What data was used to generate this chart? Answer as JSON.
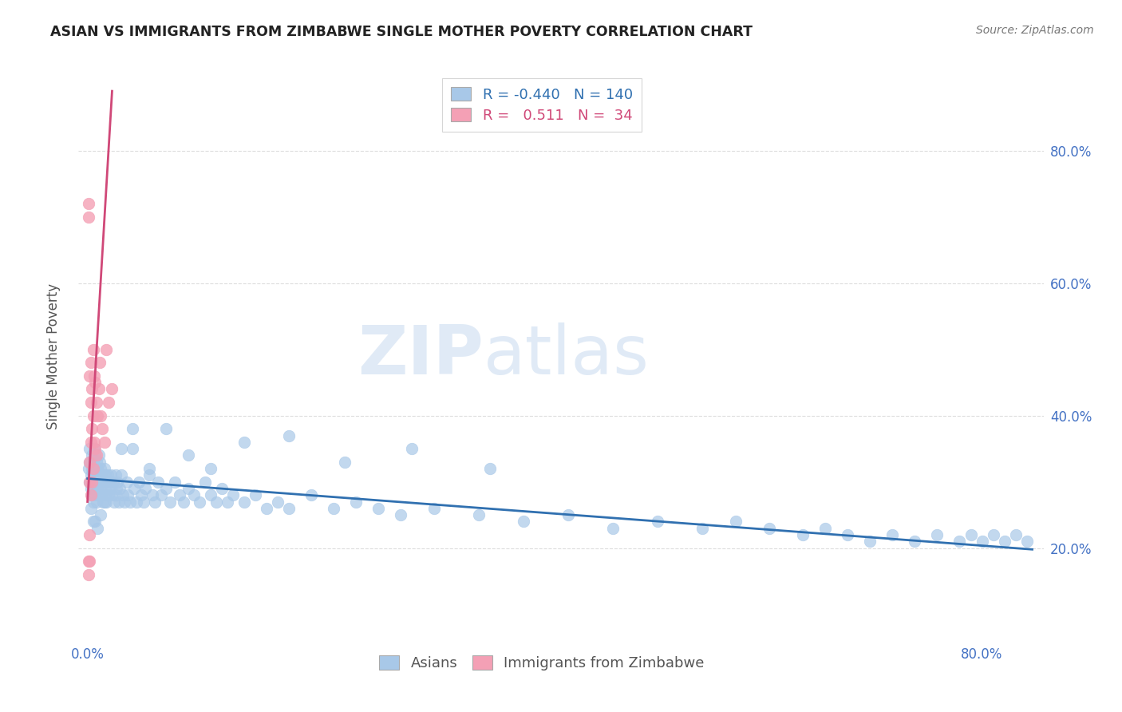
{
  "title": "ASIAN VS IMMIGRANTS FROM ZIMBABWE SINGLE MOTHER POVERTY CORRELATION CHART",
  "source": "Source: ZipAtlas.com",
  "ylabel": "Single Mother Poverty",
  "watermark_zip": "ZIP",
  "watermark_atlas": "atlas",
  "blue_color": "#a8c8e8",
  "pink_color": "#f4a0b5",
  "blue_line_color": "#3070b0",
  "pink_line_color": "#d04878",
  "title_color": "#222222",
  "source_color": "#777777",
  "tick_color": "#4472c4",
  "right_label_color": "#4472c4",
  "ylabel_color": "#555555",
  "legend_border_color": "#cccccc",
  "grid_color": "#dddddd",
  "asian_x": [
    0.001,
    0.002,
    0.002,
    0.003,
    0.003,
    0.003,
    0.004,
    0.004,
    0.004,
    0.005,
    0.005,
    0.005,
    0.005,
    0.006,
    0.006,
    0.006,
    0.007,
    0.007,
    0.007,
    0.008,
    0.008,
    0.008,
    0.009,
    0.009,
    0.01,
    0.01,
    0.01,
    0.011,
    0.011,
    0.012,
    0.012,
    0.013,
    0.013,
    0.014,
    0.014,
    0.015,
    0.015,
    0.016,
    0.016,
    0.017,
    0.017,
    0.018,
    0.019,
    0.019,
    0.02,
    0.021,
    0.022,
    0.023,
    0.024,
    0.025,
    0.026,
    0.027,
    0.028,
    0.029,
    0.03,
    0.032,
    0.033,
    0.035,
    0.036,
    0.038,
    0.04,
    0.042,
    0.044,
    0.046,
    0.048,
    0.05,
    0.052,
    0.055,
    0.058,
    0.06,
    0.063,
    0.066,
    0.07,
    0.074,
    0.078,
    0.082,
    0.086,
    0.09,
    0.095,
    0.1,
    0.105,
    0.11,
    0.115,
    0.12,
    0.125,
    0.13,
    0.14,
    0.15,
    0.16,
    0.17,
    0.18,
    0.2,
    0.22,
    0.24,
    0.26,
    0.28,
    0.31,
    0.35,
    0.39,
    0.43,
    0.47,
    0.51,
    0.55,
    0.58,
    0.61,
    0.64,
    0.66,
    0.68,
    0.7,
    0.72,
    0.74,
    0.76,
    0.78,
    0.79,
    0.8,
    0.81,
    0.82,
    0.83,
    0.84,
    0.002,
    0.003,
    0.005,
    0.007,
    0.009,
    0.012,
    0.015,
    0.02,
    0.025,
    0.03,
    0.04,
    0.055,
    0.07,
    0.09,
    0.11,
    0.14,
    0.18,
    0.23,
    0.29,
    0.36
  ],
  "asian_y": [
    0.32,
    0.35,
    0.3,
    0.33,
    0.31,
    0.29,
    0.34,
    0.32,
    0.28,
    0.33,
    0.31,
    0.29,
    0.27,
    0.35,
    0.32,
    0.3,
    0.34,
    0.31,
    0.28,
    0.33,
    0.3,
    0.27,
    0.32,
    0.29,
    0.34,
    0.31,
    0.28,
    0.33,
    0.3,
    0.32,
    0.29,
    0.31,
    0.28,
    0.3,
    0.27,
    0.32,
    0.29,
    0.31,
    0.28,
    0.3,
    0.27,
    0.31,
    0.28,
    0.3,
    0.29,
    0.31,
    0.28,
    0.3,
    0.27,
    0.31,
    0.29,
    0.3,
    0.27,
    0.29,
    0.31,
    0.28,
    0.27,
    0.3,
    0.28,
    0.27,
    0.35,
    0.29,
    0.27,
    0.3,
    0.28,
    0.27,
    0.29,
    0.31,
    0.28,
    0.27,
    0.3,
    0.28,
    0.29,
    0.27,
    0.3,
    0.28,
    0.27,
    0.29,
    0.28,
    0.27,
    0.3,
    0.28,
    0.27,
    0.29,
    0.27,
    0.28,
    0.27,
    0.28,
    0.26,
    0.27,
    0.26,
    0.28,
    0.26,
    0.27,
    0.26,
    0.25,
    0.26,
    0.25,
    0.24,
    0.25,
    0.23,
    0.24,
    0.23,
    0.24,
    0.23,
    0.22,
    0.23,
    0.22,
    0.21,
    0.22,
    0.21,
    0.22,
    0.21,
    0.22,
    0.21,
    0.22,
    0.21,
    0.22,
    0.21,
    0.33,
    0.26,
    0.24,
    0.24,
    0.23,
    0.25,
    0.27,
    0.3,
    0.28,
    0.35,
    0.38,
    0.32,
    0.38,
    0.34,
    0.32,
    0.36,
    0.37,
    0.33,
    0.35,
    0.32
  ],
  "zimb_x": [
    0.001,
    0.001,
    0.001,
    0.001,
    0.002,
    0.002,
    0.002,
    0.002,
    0.002,
    0.003,
    0.003,
    0.003,
    0.003,
    0.004,
    0.004,
    0.004,
    0.005,
    0.005,
    0.005,
    0.006,
    0.006,
    0.007,
    0.007,
    0.008,
    0.008,
    0.009,
    0.01,
    0.011,
    0.012,
    0.013,
    0.015,
    0.017,
    0.019,
    0.022
  ],
  "zimb_y": [
    0.72,
    0.7,
    0.18,
    0.16,
    0.33,
    0.18,
    0.46,
    0.3,
    0.22,
    0.48,
    0.42,
    0.36,
    0.28,
    0.44,
    0.38,
    0.3,
    0.5,
    0.4,
    0.32,
    0.46,
    0.36,
    0.45,
    0.35,
    0.42,
    0.34,
    0.4,
    0.44,
    0.48,
    0.4,
    0.38,
    0.36,
    0.5,
    0.42,
    0.44
  ],
  "xlim_min": -0.008,
  "xlim_max": 0.855,
  "ylim_min": 0.06,
  "ylim_max": 0.92,
  "blue_line_x0": 0.0,
  "blue_line_x1": 0.845,
  "blue_line_y0": 0.305,
  "blue_line_y1": 0.198,
  "pink_line_x0": 0.0,
  "pink_line_x1": 0.022,
  "pink_line_y0": 0.27,
  "pink_line_y1": 0.89
}
